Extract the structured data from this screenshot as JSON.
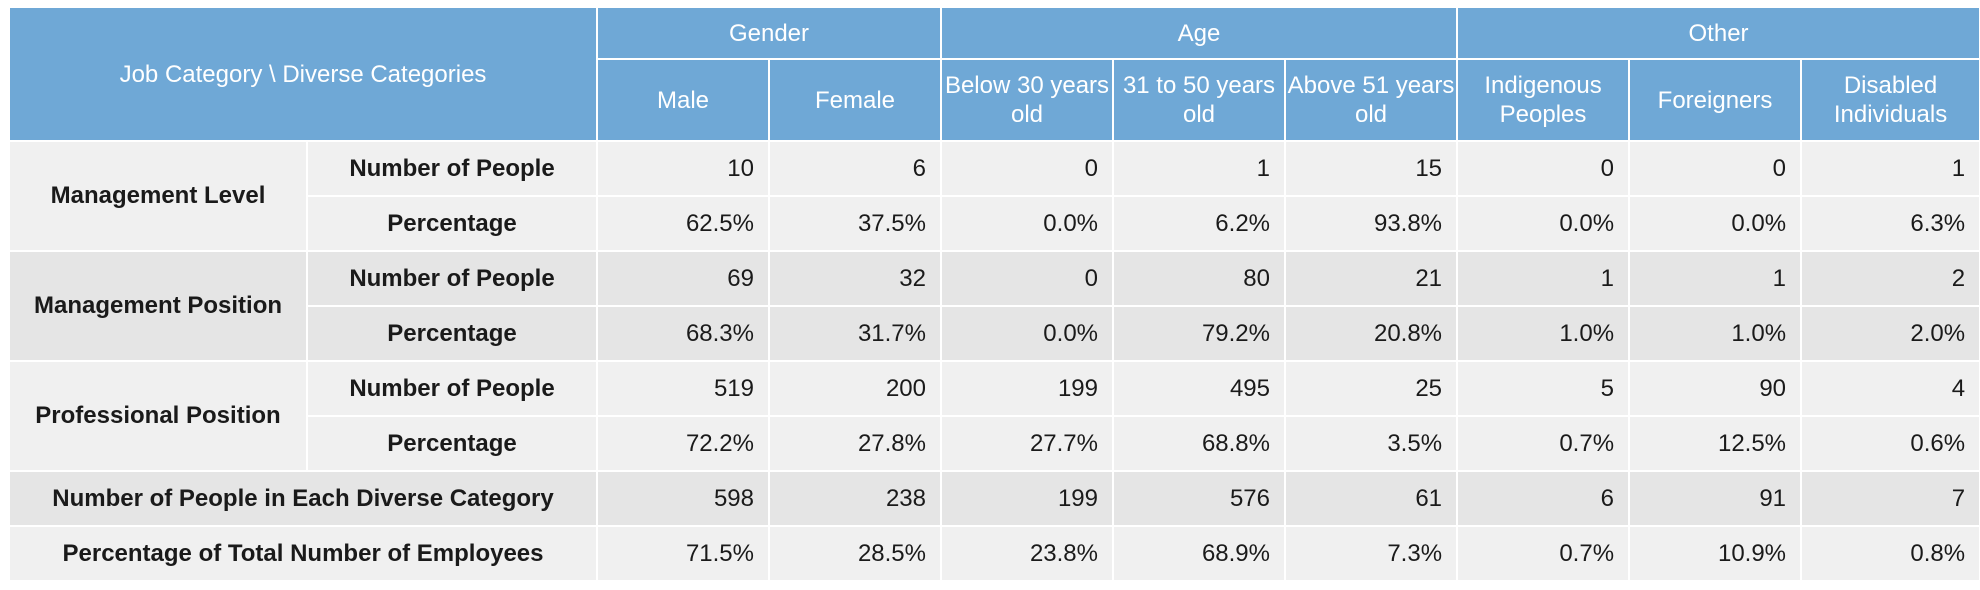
{
  "header": {
    "corner_label": "Job Category \\ Diverse Categories",
    "groups": [
      "Gender",
      "Age",
      "Other"
    ],
    "columns": [
      "Male",
      "Female",
      "Below 30 years old",
      "31 to 50 years old",
      "Above 51 years old",
      "Indigenous Peoples",
      "Foreigners",
      "Disabled Individuals"
    ]
  },
  "sections": [
    {
      "category": "Management Level",
      "count_label": "Number of People",
      "counts": [
        "10",
        "6",
        "0",
        "1",
        "15",
        "0",
        "0",
        "1"
      ],
      "pct_label": "Percentage",
      "percentages": [
        "62.5%",
        "37.5%",
        "0.0%",
        "6.2%",
        "93.8%",
        "0.0%",
        "0.0%",
        "6.3%"
      ]
    },
    {
      "category": "Management Position",
      "count_label": "Number of People",
      "counts": [
        "69",
        "32",
        "0",
        "80",
        "21",
        "1",
        "1",
        "2"
      ],
      "pct_label": "Percentage",
      "percentages": [
        "68.3%",
        "31.7%",
        "0.0%",
        "79.2%",
        "20.8%",
        "1.0%",
        "1.0%",
        "2.0%"
      ]
    },
    {
      "category": "Professional Position",
      "count_label": "Number of People",
      "counts": [
        "519",
        "200",
        "199",
        "495",
        "25",
        "5",
        "90",
        "4"
      ],
      "pct_label": "Percentage",
      "percentages": [
        "72.2%",
        "27.8%",
        "27.7%",
        "68.8%",
        "3.5%",
        "0.7%",
        "12.5%",
        "0.6%"
      ]
    }
  ],
  "totals": [
    {
      "label": "Number of People in Each Diverse Category",
      "values": [
        "598",
        "238",
        "199",
        "576",
        "61",
        "6",
        "91",
        "7"
      ]
    },
    {
      "label": "Percentage of Total Number of Employees",
      "values": [
        "71.5%",
        "28.5%",
        "23.8%",
        "68.9%",
        "7.3%",
        "0.7%",
        "10.9%",
        "0.8%"
      ]
    }
  ]
}
